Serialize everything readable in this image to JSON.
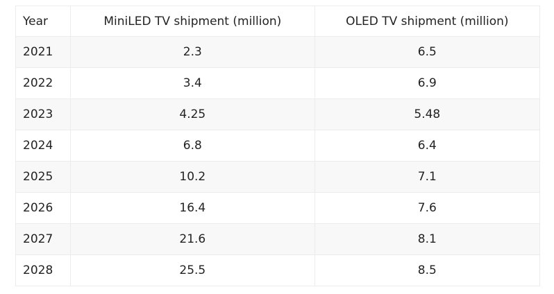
{
  "table": {
    "header": [
      "Year",
      "MiniLED TV shipment (million)",
      "OLED TV shipment (million)"
    ],
    "rows": [
      [
        "2021",
        "2.3",
        "6.5"
      ],
      [
        "2022",
        "3.4",
        "6.9"
      ],
      [
        "2023",
        "4.25",
        "5.48"
      ],
      [
        "2024",
        "6.8",
        "6.4"
      ],
      [
        "2025",
        "10.2",
        "7.1"
      ],
      [
        "2026",
        "16.4",
        "7.6"
      ],
      [
        "2027",
        "21.6",
        "8.1"
      ],
      [
        "2028",
        "25.5",
        "8.5"
      ]
    ]
  }
}
